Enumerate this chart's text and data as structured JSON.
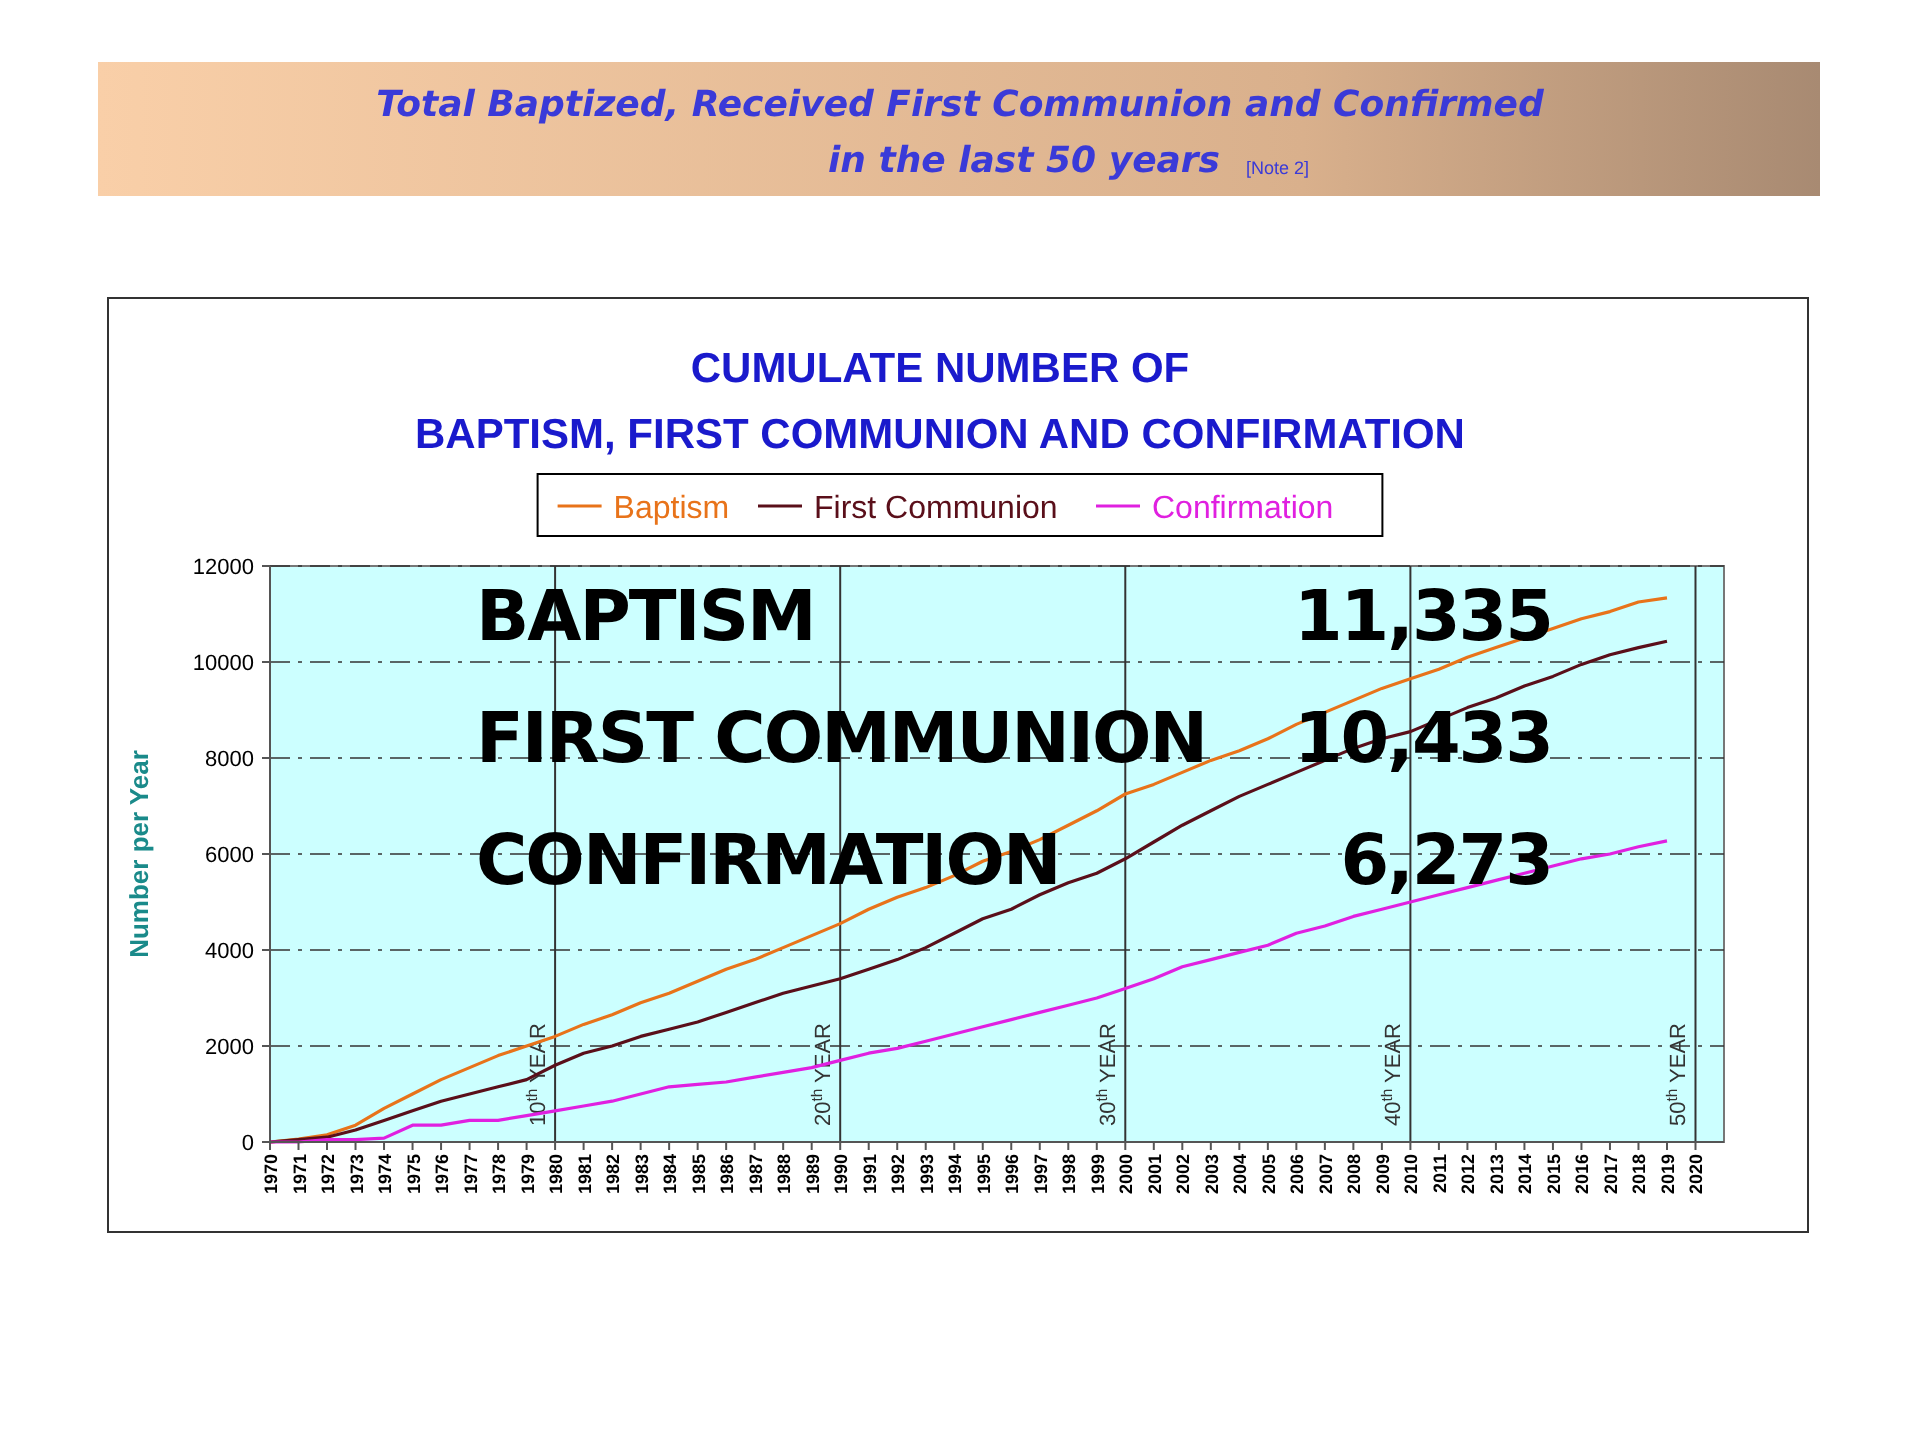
{
  "chart_data": {
    "type": "line",
    "title": "Total Baptized, Received First Communion and Confirmed\nin the last 50 years",
    "subtitle": "CUMULATE NUMBER OF\nBAPTISM, FIRST COMMUNION AND CONFIRMATION",
    "ylabel": "Number per Year",
    "annotations": [
      "[Note 2]",
      "BAPTISM",
      "11,335",
      "FIRST COMMUNION",
      "10,433",
      "CONFIRMATION",
      "6,273"
    ],
    "x": [
      1970,
      1971,
      1972,
      1973,
      1974,
      1975,
      1976,
      1977,
      1978,
      1979,
      1980,
      1981,
      1982,
      1983,
      1984,
      1985,
      1986,
      1987,
      1988,
      1989,
      1990,
      1991,
      1992,
      1993,
      1994,
      1995,
      1996,
      1997,
      1998,
      1999,
      2000,
      2001,
      2002,
      2003,
      2004,
      2005,
      2006,
      2007,
      2008,
      2009,
      2010,
      2011,
      2012,
      2013,
      2014,
      2015,
      2016,
      2017,
      2018,
      2019
    ],
    "series": [
      {
        "name": "Baptism",
        "color": "#e8731a",
        "values": [
          0,
          60,
          150,
          350,
          700,
          1000,
          1300,
          1550,
          1800,
          2000,
          2200,
          2450,
          2650,
          2900,
          3100,
          3350,
          3600,
          3800,
          4050,
          4300,
          4550,
          4850,
          5100,
          5300,
          5550,
          5850,
          6050,
          6300,
          6600,
          6900,
          7250,
          7450,
          7700,
          7950,
          8150,
          8400,
          8700,
          8950,
          9200,
          9450,
          9650,
          9850,
          10100,
          10300,
          10500,
          10700,
          10900,
          11050,
          11250,
          11335
        ]
      },
      {
        "name": "First Communion",
        "color": "#5a0f1a",
        "values": [
          0,
          50,
          100,
          250,
          450,
          650,
          850,
          1000,
          1150,
          1300,
          1600,
          1850,
          2000,
          2200,
          2350,
          2500,
          2700,
          2900,
          3100,
          3250,
          3400,
          3600,
          3800,
          4050,
          4350,
          4650,
          4850,
          5150,
          5400,
          5600,
          5900,
          6250,
          6600,
          6900,
          7200,
          7450,
          7700,
          7950,
          8200,
          8400,
          8550,
          8800,
          9050,
          9250,
          9500,
          9700,
          9950,
          10150,
          10300,
          10433
        ]
      },
      {
        "name": "Confirmation",
        "color": "#e020e0",
        "values": [
          0,
          0,
          50,
          50,
          80,
          350,
          350,
          450,
          450,
          550,
          650,
          750,
          850,
          1000,
          1150,
          1200,
          1250,
          1350,
          1450,
          1550,
          1700,
          1850,
          1950,
          2100,
          2250,
          2400,
          2550,
          2700,
          2850,
          3000,
          3200,
          3400,
          3650,
          3800,
          3950,
          4100,
          4350,
          4500,
          4700,
          4850,
          5000,
          5150,
          5300,
          5450,
          5600,
          5750,
          5900,
          6000,
          6150,
          6273
        ]
      }
    ],
    "xlim": [
      1970,
      2021
    ],
    "xticks": [
      1970,
      1971,
      1972,
      1973,
      1974,
      1975,
      1976,
      1977,
      1978,
      1979,
      1980,
      1981,
      1982,
      1983,
      1984,
      1985,
      1986,
      1987,
      1988,
      1989,
      1990,
      1991,
      1992,
      1993,
      1994,
      1995,
      1996,
      1997,
      1998,
      1999,
      2000,
      2001,
      2002,
      2003,
      2004,
      2005,
      2006,
      2007,
      2008,
      2009,
      2010,
      2011,
      2012,
      2013,
      2014,
      2015,
      2016,
      2017,
      2018,
      2019,
      2020
    ],
    "ylim": [
      0,
      12000
    ],
    "yticks": [
      0,
      2000,
      4000,
      6000,
      8000,
      10000,
      12000
    ],
    "grid": "y",
    "legend": "top",
    "marker": "none",
    "line_style": "solid",
    "ref_lines": [
      {
        "axis": "x",
        "value": 1980,
        "label": "10$^{th}$ YEAR",
        "color": "#333333"
      },
      {
        "axis": "x",
        "value": 1990,
        "label": "20$^{th}$ YEAR",
        "color": "#333333"
      },
      {
        "axis": "x",
        "value": 2000,
        "label": "30$^{th}$ YEAR",
        "color": "#333333"
      },
      {
        "axis": "x",
        "value": 2010,
        "label": "40$^{th}$ YEAR",
        "color": "#333333"
      },
      {
        "axis": "x",
        "value": 2020,
        "label": "50$^{th}$ YEAR",
        "color": "#333333"
      }
    ]
  }
}
